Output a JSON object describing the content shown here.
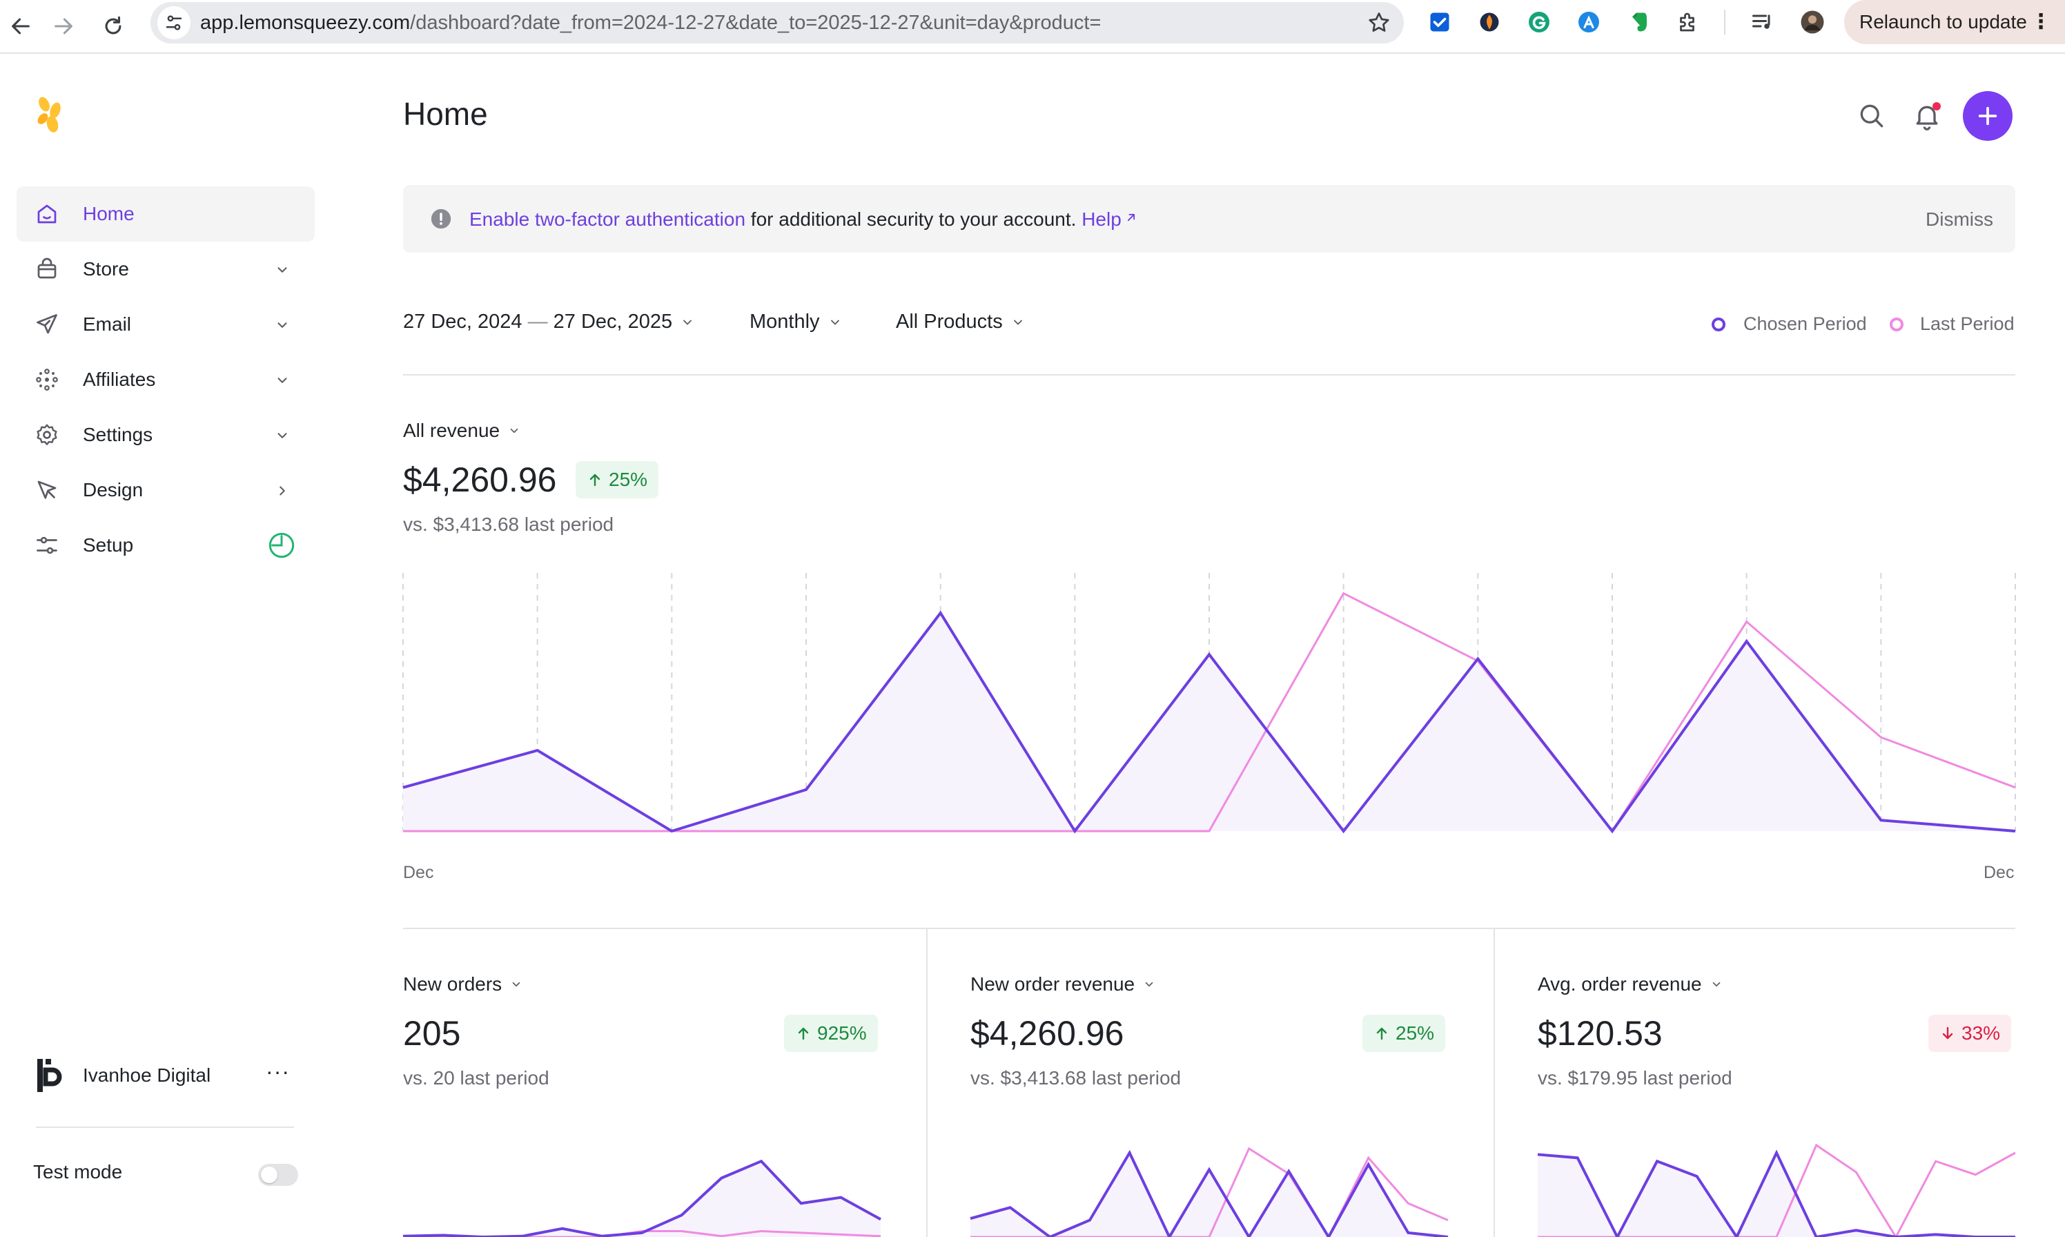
{
  "browser": {
    "url_host": "app.lemonsqueezy.com",
    "url_path": "/dashboard?date_from=2024-12-27&date_to=2025-12-27&unit=day&product=",
    "relaunch_label": "Relaunch to update"
  },
  "sidebar": {
    "items": [
      {
        "label": "Home",
        "icon": "home-icon",
        "active": true
      },
      {
        "label": "Store",
        "icon": "bag-icon"
      },
      {
        "label": "Email",
        "icon": "send-icon"
      },
      {
        "label": "Affiliates",
        "icon": "affiliates-icon"
      },
      {
        "label": "Settings",
        "icon": "gear-icon"
      },
      {
        "label": "Design",
        "icon": "cursor-icon"
      },
      {
        "label": "Setup",
        "icon": "sliders-icon"
      }
    ],
    "account_name": "Ivanhoe Digital",
    "account_more": "···",
    "test_mode_label": "Test mode",
    "test_mode_on": false
  },
  "header": {
    "title": "Home"
  },
  "banner": {
    "link_text": "Enable two-factor authentication",
    "text": " for additional security to your account. ",
    "help_text": "Help",
    "dismiss_label": "Dismiss"
  },
  "filters": {
    "date_from": "27 Dec, 2024",
    "date_sep": " — ",
    "date_to": "27 Dec, 2025",
    "interval": "Monthly",
    "product": "All Products"
  },
  "legend": {
    "chosen": "Chosen Period",
    "last": "Last Period"
  },
  "colors": {
    "chosen": "#6d3fe0",
    "last": "#f08ae0",
    "accent": "#7a3df2",
    "up": "#1d8a3e",
    "down": "#d81f45"
  },
  "revenue": {
    "label": "All revenue",
    "value": "$4,260.96",
    "change": "25%",
    "direction": "up",
    "comparison": "vs. $3,413.68 last period"
  },
  "cards": [
    {
      "label": "New orders",
      "value": "205",
      "change": "925%",
      "direction": "up",
      "comparison": "vs. 20 last period"
    },
    {
      "label": "New order revenue",
      "value": "$4,260.96",
      "change": "25%",
      "direction": "up",
      "comparison": "vs. $3,413.68 last period"
    },
    {
      "label": "Avg. order revenue",
      "value": "$120.53",
      "change": "33%",
      "direction": "down",
      "comparison": "vs. $179.95 last period"
    }
  ],
  "chart_data": [
    {
      "type": "area",
      "x_start_label": "Dec",
      "x_end_label": "Dec",
      "ylim": [
        0,
        100
      ],
      "series": [
        {
          "values": [
            20,
            37,
            0,
            19,
            100,
            0,
            81,
            0,
            79,
            0,
            87,
            5,
            0
          ]
        },
        {
          "values": [
            0,
            0,
            0,
            0,
            0,
            0,
            0,
            109,
            78,
            0,
            96,
            43,
            20
          ]
        }
      ]
    },
    {
      "type": "area",
      "ylim": [
        0,
        100
      ],
      "series": [
        {
          "values": [
            1,
            2,
            0,
            1,
            10,
            1,
            5,
            26,
            70,
            90,
            40,
            47,
            21
          ]
        },
        {
          "values": [
            0,
            0,
            0,
            0,
            0,
            0,
            7,
            7,
            1,
            7,
            5,
            3,
            1
          ]
        }
      ]
    },
    {
      "type": "area",
      "ylim": [
        0,
        100
      ],
      "series": [
        {
          "values": [
            22,
            35,
            0,
            20,
            100,
            0,
            80,
            0,
            78,
            0,
            86,
            5,
            0
          ]
        },
        {
          "values": [
            0,
            0,
            0,
            0,
            0,
            0,
            0,
            105,
            75,
            0,
            94,
            40,
            20
          ]
        }
      ]
    },
    {
      "type": "area",
      "ylim": [
        0,
        100
      ],
      "series": [
        {
          "values": [
            98,
            94,
            0,
            90,
            72,
            0,
            100,
            0,
            8,
            0,
            3,
            0,
            0
          ]
        },
        {
          "values": [
            0,
            0,
            0,
            0,
            0,
            0,
            0,
            109,
            77,
            0,
            90,
            74,
            100
          ]
        }
      ]
    }
  ]
}
